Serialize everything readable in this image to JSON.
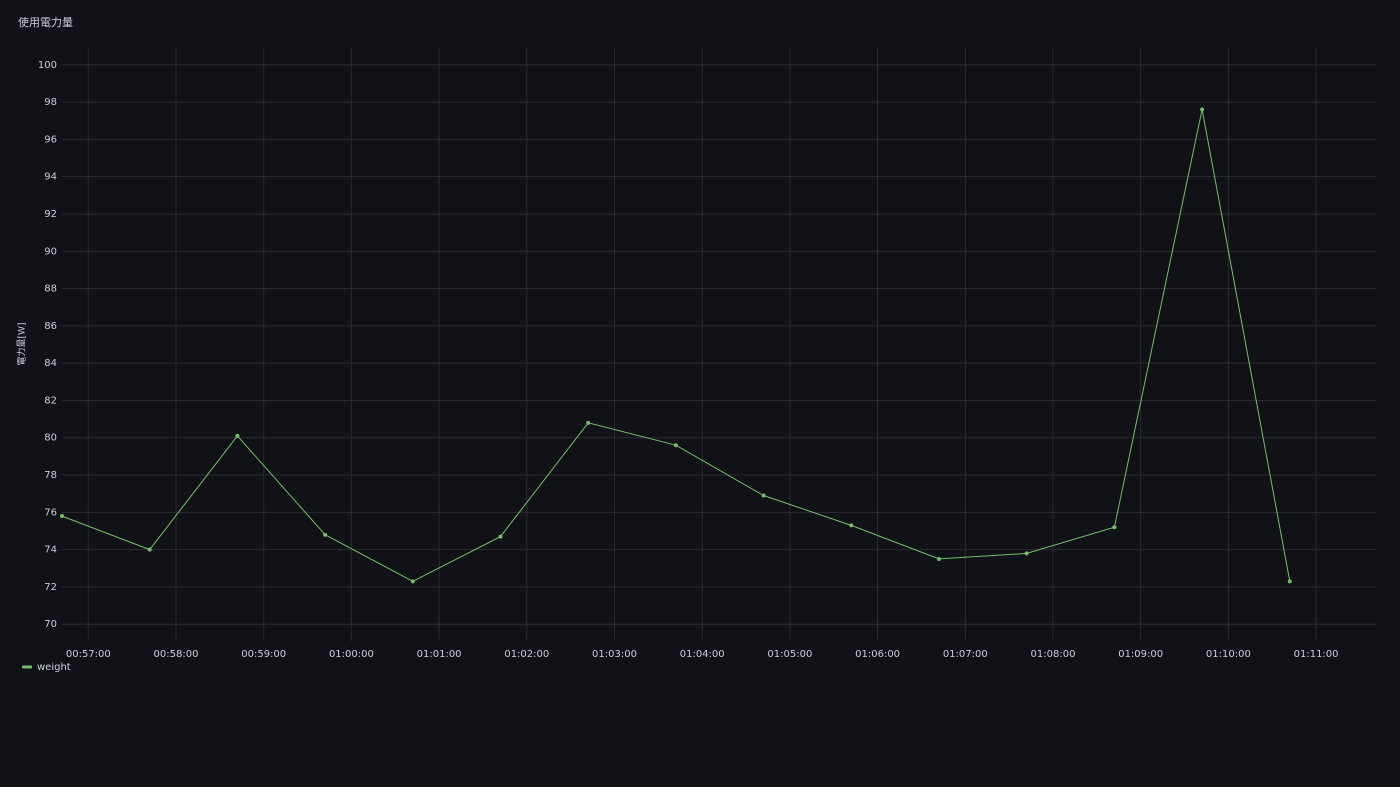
{
  "chart_data": {
    "type": "line",
    "title": "使用電力量",
    "y_label": "電力量[W]",
    "x": [
      "00:56:42",
      "00:57:42",
      "00:58:42",
      "00:59:42",
      "01:00:42",
      "01:01:42",
      "01:02:42",
      "01:03:42",
      "01:04:42",
      "01:05:42",
      "01:06:42",
      "01:07:42",
      "01:08:42",
      "01:09:42",
      "01:10:42"
    ],
    "series": [
      {
        "name": "weight",
        "color": "#73bf69",
        "values": [
          75.8,
          74.0,
          80.1,
          74.8,
          72.3,
          74.7,
          80.8,
          79.6,
          76.9,
          75.3,
          73.5,
          73.8,
          75.2,
          97.6,
          72.3
        ]
      }
    ],
    "xlim": [
      "00:56:42",
      "01:11:41"
    ],
    "xticks": [
      "00:57:00",
      "00:58:00",
      "00:59:00",
      "01:00:00",
      "01:01:00",
      "01:02:00",
      "01:03:00",
      "01:04:00",
      "01:05:00",
      "01:06:00",
      "01:07:00",
      "01:08:00",
      "01:09:00",
      "01:10:00",
      "01:11:00"
    ],
    "ylim": [
      69.1,
      100.9
    ],
    "yticks": [
      70,
      72,
      74,
      76,
      78,
      80,
      82,
      84,
      86,
      88,
      90,
      92,
      94,
      96,
      98,
      100
    ],
    "grid": true,
    "legend": "bottom-left"
  }
}
